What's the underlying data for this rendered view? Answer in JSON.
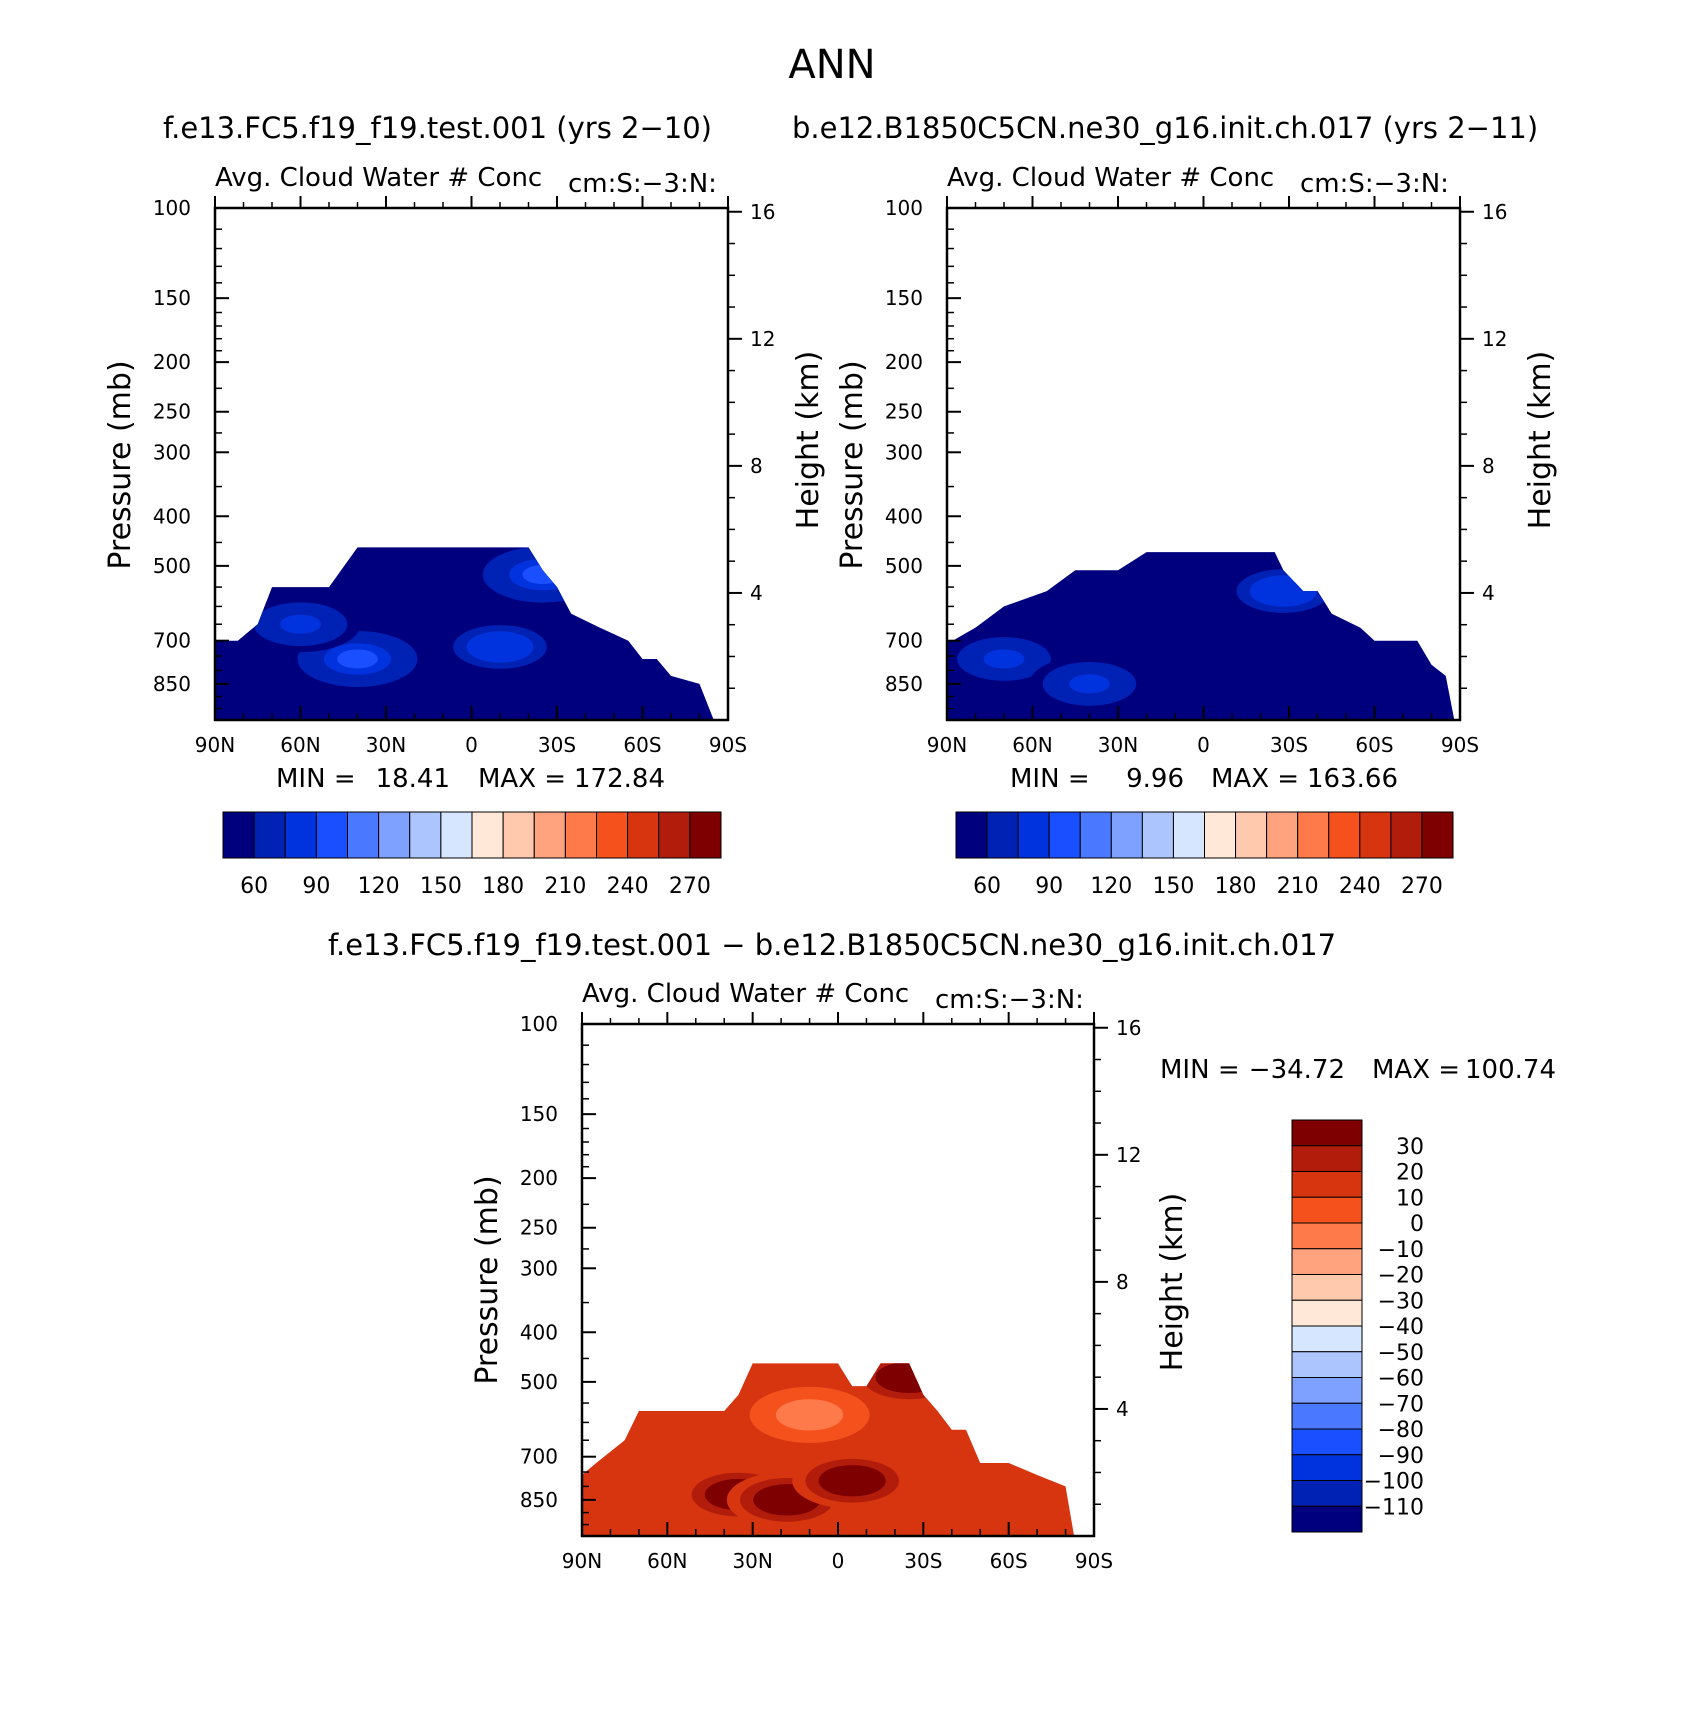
{
  "page": {
    "title": "ANN",
    "run_a": "f.e13.FC5.f19_f19.test.001 (yrs 2−10)",
    "run_b": "b.e12.B1850C5CN.ne30_g16.init.ch.017 (yrs 2−11)",
    "diff_title": "f.e13.FC5.f19_f19.test.001 − b.e12.B1850C5CN.ne30_g16.init.ch.017"
  },
  "chart_data": [
    {
      "type": "heatmap",
      "title": "Avg. Cloud Water # Conc",
      "units": "cm:S:−3:N:",
      "xlabel": "",
      "ylabel": "Pressure (mb)",
      "y2label": "Height (km)",
      "x_ticks": [
        "90N",
        "60N",
        "30N",
        "0",
        "30S",
        "60S",
        "90S"
      ],
      "y_ticks": [
        100,
        150,
        200,
        250,
        300,
        400,
        500,
        700,
        850
      ],
      "y2_ticks": [
        16,
        12,
        8,
        4
      ],
      "ylim": [
        1000,
        100
      ],
      "y_scale": "log",
      "stats": {
        "min_label": "MIN =",
        "min": "18.41",
        "max_label": "MAX =",
        "max": "172.84"
      },
      "colorbar": {
        "levels": [
          "60",
          "90",
          "120",
          "150",
          "180",
          "210",
          "240",
          "270"
        ]
      },
      "colors": [
        "#00007f",
        "#0022b4",
        "#0033dd",
        "#1a4fff",
        "#4a79ff",
        "#7ea1ff",
        "#adc5ff",
        "#d7e6ff",
        "#ffe8d8",
        "#ffc9ae",
        "#ffa27d",
        "#ff7a4a",
        "#f5511d",
        "#d63510",
        "#b21d0b",
        "#7f0000"
      ],
      "region": {
        "lat": [
          -90,
          -82,
          -75,
          -70,
          -60,
          -50,
          -40,
          -35,
          -20,
          -10,
          0,
          10,
          20,
          25,
          30,
          35,
          45,
          55,
          60,
          65,
          70,
          80,
          85
        ],
        "p": [
          700,
          700,
          650,
          550,
          550,
          550,
          460,
          460,
          460,
          460,
          460,
          460,
          460,
          510,
          550,
          620,
          660,
          700,
          760,
          760,
          820,
          850,
          1000
        ]
      },
      "note_values": {
        "background": 40,
        "blobs": [
          {
            "lat": -40,
            "p": 760,
            "v": 130
          },
          {
            "lat": -60,
            "p": 650,
            "v": 100
          },
          {
            "lat": 10,
            "p": 720,
            "v": 110
          },
          {
            "lat": 25,
            "p": 520,
            "v": 120
          }
        ]
      }
    },
    {
      "type": "heatmap",
      "title": "Avg. Cloud Water # Conc",
      "units": "cm:S:−3:N:",
      "xlabel": "",
      "ylabel": "Pressure (mb)",
      "y2label": "Height (km)",
      "x_ticks": [
        "90N",
        "60N",
        "30N",
        "0",
        "30S",
        "60S",
        "90S"
      ],
      "y_ticks": [
        100,
        150,
        200,
        250,
        300,
        400,
        500,
        700,
        850
      ],
      "y2_ticks": [
        16,
        12,
        8,
        4
      ],
      "ylim": [
        1000,
        100
      ],
      "y_scale": "log",
      "stats": {
        "min_label": "MIN =",
        "min": "9.96",
        "max_label": "MAX =",
        "max": "163.66"
      },
      "colorbar": {
        "levels": [
          "60",
          "90",
          "120",
          "150",
          "180",
          "210",
          "240",
          "270"
        ]
      },
      "colors": [
        "#00007f",
        "#0022b4",
        "#0033dd",
        "#1a4fff",
        "#4a79ff",
        "#7ea1ff",
        "#adc5ff",
        "#d7e6ff",
        "#ffe8d8",
        "#ffc9ae",
        "#ffa27d",
        "#ff7a4a",
        "#f5511d",
        "#d63510",
        "#b21d0b",
        "#7f0000"
      ],
      "region": {
        "lat": [
          -90,
          -88,
          -80,
          -70,
          -55,
          -45,
          -30,
          -20,
          -10,
          0,
          10,
          20,
          25,
          28,
          35,
          40,
          45,
          55,
          60,
          75,
          80,
          85,
          88
        ],
        "p": [
          700,
          700,
          660,
          600,
          560,
          510,
          510,
          470,
          470,
          470,
          470,
          470,
          470,
          510,
          560,
          560,
          620,
          660,
          700,
          700,
          780,
          820,
          1000
        ]
      },
      "note_values": {
        "background": 40,
        "blobs": [
          {
            "lat": -70,
            "p": 760,
            "v": 95
          },
          {
            "lat": -40,
            "p": 850,
            "v": 90
          },
          {
            "lat": 28,
            "p": 560,
            "v": 110
          }
        ]
      }
    },
    {
      "type": "heatmap",
      "title": "Avg. Cloud Water # Conc",
      "units": "cm:S:−3:N:",
      "xlabel": "",
      "ylabel": "Pressure (mb)",
      "y2label": "Height (km)",
      "x_ticks": [
        "90N",
        "60N",
        "30N",
        "0",
        "30S",
        "60S",
        "90S"
      ],
      "y_ticks": [
        100,
        150,
        200,
        250,
        300,
        400,
        500,
        700,
        850
      ],
      "y2_ticks": [
        16,
        12,
        8,
        4
      ],
      "ylim": [
        1000,
        100
      ],
      "y_scale": "log",
      "stats": {
        "min_label": "MIN =",
        "min": "−34.72",
        "max_label": "MAX =",
        "max": "100.74"
      },
      "colorbar": {
        "levels": [
          "30",
          "20",
          "10",
          "0",
          "−10",
          "−20",
          "−30",
          "−40",
          "−50",
          "−60",
          "−70",
          "−80",
          "−90",
          "−100",
          "−110"
        ]
      },
      "colors": [
        "#7f0000",
        "#b21d0b",
        "#d63510",
        "#f5511d",
        "#ff7a4a",
        "#ffa27d",
        "#ffc9ae",
        "#ffe8d8",
        "#d7e6ff",
        "#adc5ff",
        "#7ea1ff",
        "#4a79ff",
        "#1a4fff",
        "#0033dd",
        "#0022b4",
        "#00007f"
      ],
      "region": {
        "lat": [
          -90,
          -85,
          -75,
          -70,
          -60,
          -40,
          -35,
          -30,
          -20,
          -10,
          0,
          5,
          10,
          15,
          20,
          25,
          30,
          35,
          40,
          45,
          50,
          60,
          70,
          80,
          83
        ],
        "p": [
          760,
          720,
          650,
          570,
          570,
          570,
          530,
          460,
          460,
          460,
          460,
          510,
          510,
          460,
          460,
          460,
          530,
          570,
          620,
          620,
          720,
          720,
          760,
          800,
          1000
        ]
      },
      "note_values": {
        "background": 10,
        "blobs": [
          {
            "lat": -35,
            "p": 830,
            "v": 40
          },
          {
            "lat": -18,
            "p": 850,
            "v": 40
          },
          {
            "lat": 5,
            "p": 780,
            "v": 45
          },
          {
            "lat": 25,
            "p": 490,
            "v": 40
          },
          {
            "lat": -10,
            "p": 580,
            "v": -5
          }
        ]
      }
    }
  ]
}
